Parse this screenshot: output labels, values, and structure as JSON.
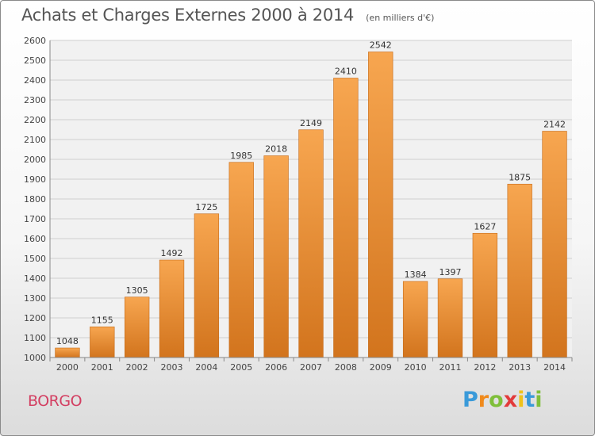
{
  "chart_data": {
    "type": "bar",
    "title": "Achats et Charges Externes 2000 à 2014",
    "subtitle": "(en milliers d'€)",
    "categories": [
      "2000",
      "2001",
      "2002",
      "2003",
      "2004",
      "2005",
      "2006",
      "2007",
      "2008",
      "2009",
      "2010",
      "2011",
      "2012",
      "2013",
      "2014"
    ],
    "values": [
      1048,
      1155,
      1305,
      1492,
      1725,
      1985,
      2018,
      2149,
      2410,
      2542,
      1384,
      1397,
      1627,
      1875,
      2142
    ],
    "ylim": [
      1000,
      2600
    ],
    "yticks": [
      1000,
      1100,
      1200,
      1300,
      1400,
      1500,
      1600,
      1700,
      1800,
      1900,
      2000,
      2100,
      2200,
      2300,
      2400,
      2500,
      2600
    ],
    "grid": true,
    "bar_color_top": "#f7a650",
    "bar_color_bottom": "#d2741d"
  },
  "location": "BORGO",
  "brand": {
    "letters": [
      "P",
      "r",
      "o",
      "x",
      "i",
      "t",
      "i"
    ],
    "colors": [
      "#3a9ad9",
      "#f08a1c",
      "#7fbf3a",
      "#e23b3b",
      "#f0c21c",
      "#3a9ad9",
      "#7fbf3a"
    ]
  }
}
